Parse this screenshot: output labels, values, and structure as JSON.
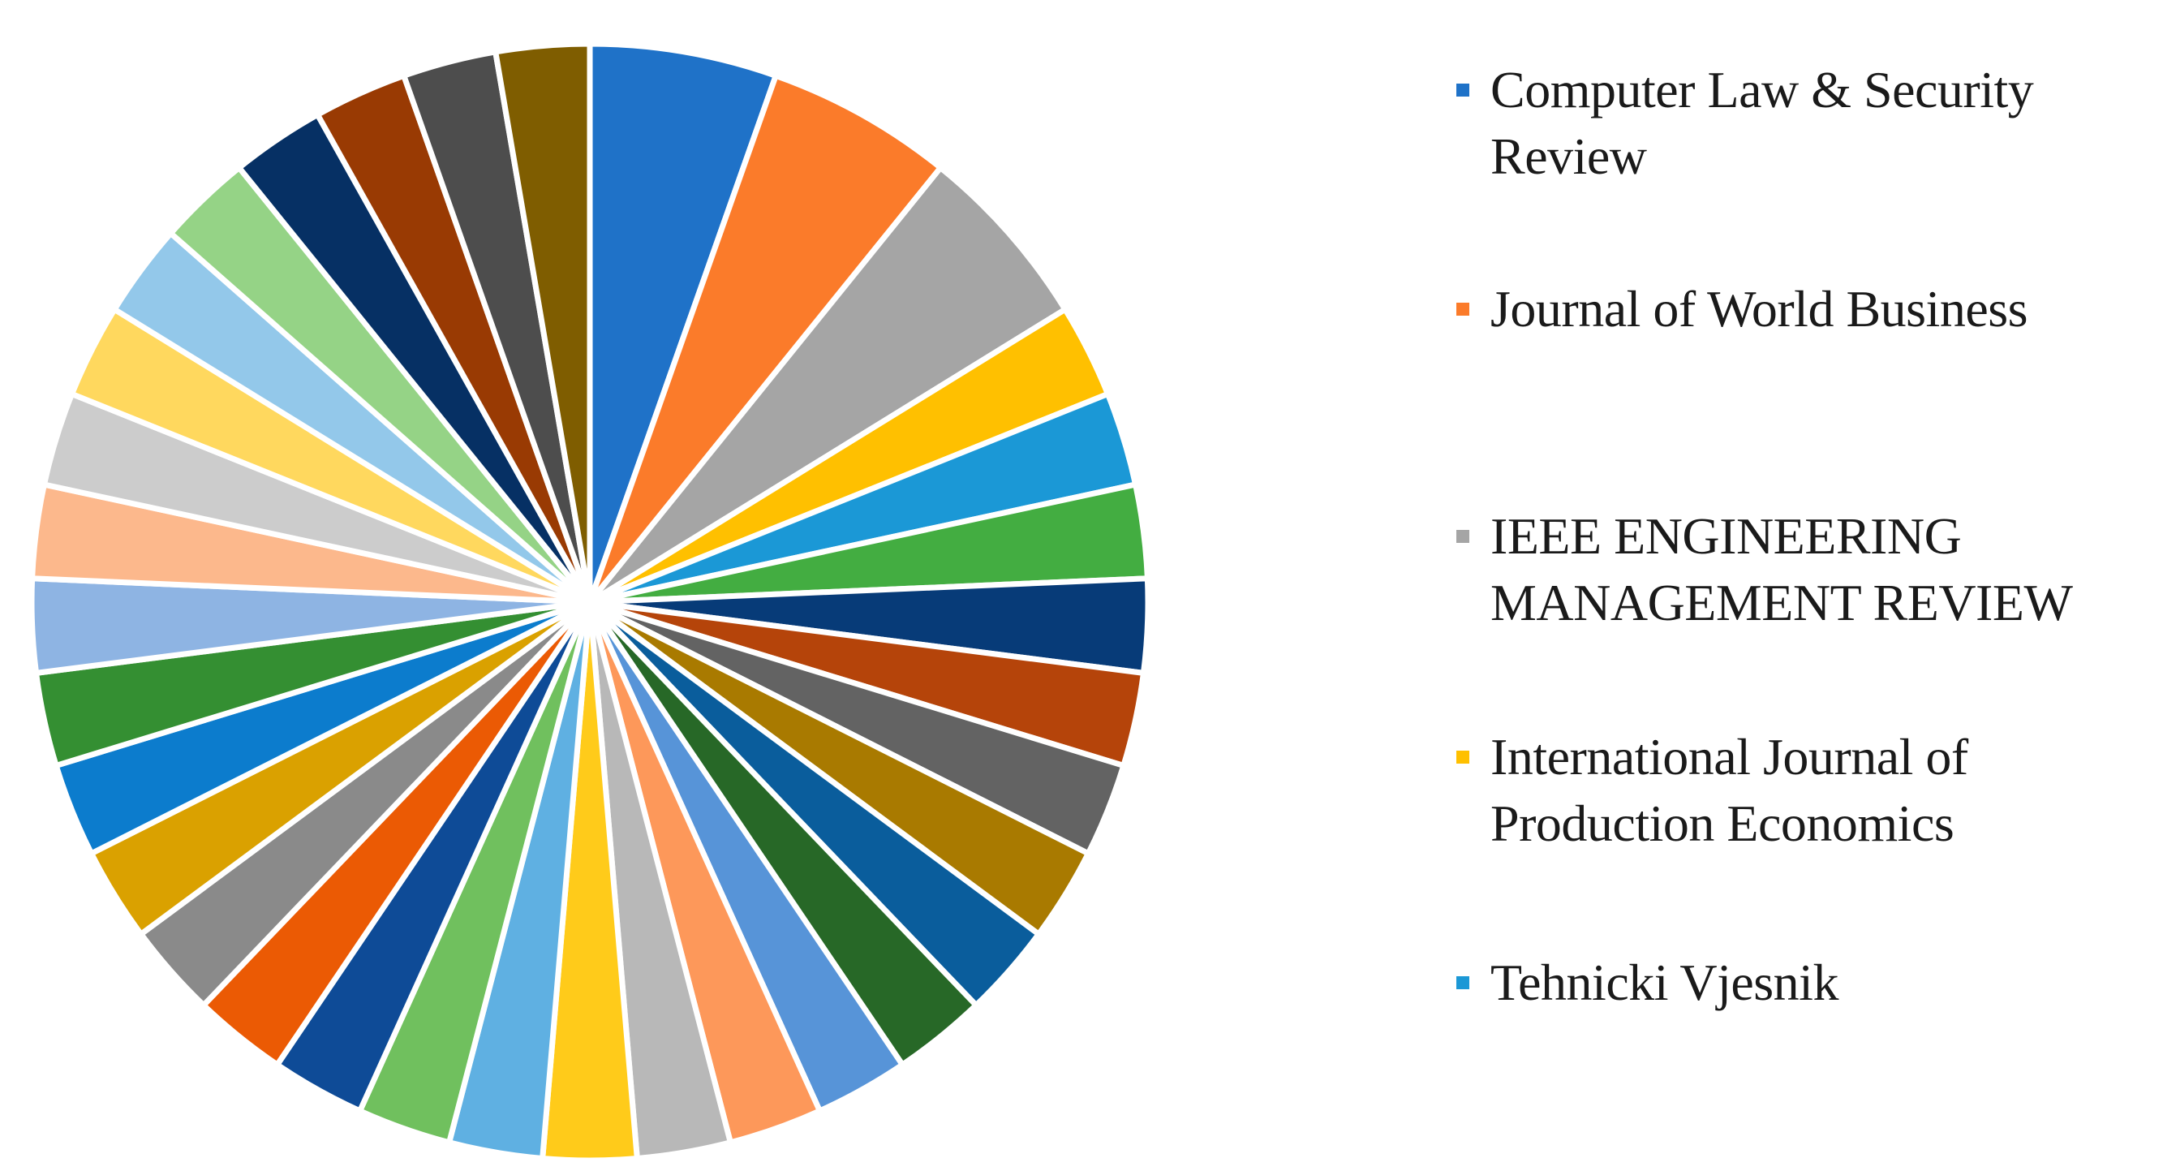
{
  "chart_data": {
    "type": "pie",
    "title": "",
    "start_angle_deg": 0,
    "direction": "clockwise",
    "slices": [
      {
        "label": "Computer Law & Security Review",
        "value": 2,
        "color": "#1f72c8"
      },
      {
        "label": "Journal of World Business",
        "value": 2,
        "color": "#fb7b2a"
      },
      {
        "label": "IEEE ENGINEERING MANAGEMENT REVIEW",
        "value": 2,
        "color": "#a5a5a5"
      },
      {
        "label": "International Journal of Production Economics",
        "value": 1,
        "color": "#ffc000"
      },
      {
        "label": "Tehnicki Vjesnik",
        "value": 1,
        "color": "#1b98d6"
      },
      {
        "label": "",
        "value": 1,
        "color": "#43ad41"
      },
      {
        "label": "",
        "value": 1,
        "color": "#073b78"
      },
      {
        "label": "",
        "value": 1,
        "color": "#b5440a"
      },
      {
        "label": "",
        "value": 1,
        "color": "#636363"
      },
      {
        "label": "",
        "value": 1,
        "color": "#a97a00"
      },
      {
        "label": "",
        "value": 1,
        "color": "#0a5d9c"
      },
      {
        "label": "",
        "value": 1,
        "color": "#276827"
      },
      {
        "label": "",
        "value": 1,
        "color": "#5794d8"
      },
      {
        "label": "",
        "value": 1,
        "color": "#fd985a"
      },
      {
        "label": "",
        "value": 1,
        "color": "#b8b8b8"
      },
      {
        "label": "",
        "value": 1,
        "color": "#ffcb1a"
      },
      {
        "label": "",
        "value": 1,
        "color": "#5fb0e2"
      },
      {
        "label": "",
        "value": 1,
        "color": "#70c05e"
      },
      {
        "label": "",
        "value": 1,
        "color": "#0e4b97"
      },
      {
        "label": "",
        "value": 1,
        "color": "#eb5a04"
      },
      {
        "label": "",
        "value": 1,
        "color": "#8a8a8a"
      },
      {
        "label": "",
        "value": 1,
        "color": "#daa100"
      },
      {
        "label": "",
        "value": 1,
        "color": "#0c7ccd"
      },
      {
        "label": "",
        "value": 1,
        "color": "#348f32"
      },
      {
        "label": "",
        "value": 1,
        "color": "#8eb4e3"
      },
      {
        "label": "",
        "value": 1,
        "color": "#fcb88c"
      },
      {
        "label": "",
        "value": 1,
        "color": "#cccccc"
      },
      {
        "label": "",
        "value": 1,
        "color": "#ffd85e"
      },
      {
        "label": "",
        "value": 1,
        "color": "#93c8ea"
      },
      {
        "label": "",
        "value": 1,
        "color": "#95d386"
      },
      {
        "label": "",
        "value": 1,
        "color": "#063064"
      },
      {
        "label": "",
        "value": 1,
        "color": "#993a03"
      },
      {
        "label": "",
        "value": 1,
        "color": "#4d4d4d"
      },
      {
        "label": "",
        "value": 1,
        "color": "#7f5d00"
      }
    ],
    "legend": {
      "placement": "right",
      "entries": [
        {
          "label": "Computer Law & Security\nReview",
          "color": "#1f72c8"
        },
        {
          "label": "Journal of World Business",
          "color": "#fb7b2a"
        },
        {
          "label": "IEEE ENGINEERING\nMANAGEMENT REVIEW",
          "color": "#a5a5a5"
        },
        {
          "label": "International Journal of\nProduction Economics",
          "color": "#ffc000"
        },
        {
          "label": "Tehnicki Vjesnik",
          "color": "#1b98d6"
        }
      ]
    }
  }
}
